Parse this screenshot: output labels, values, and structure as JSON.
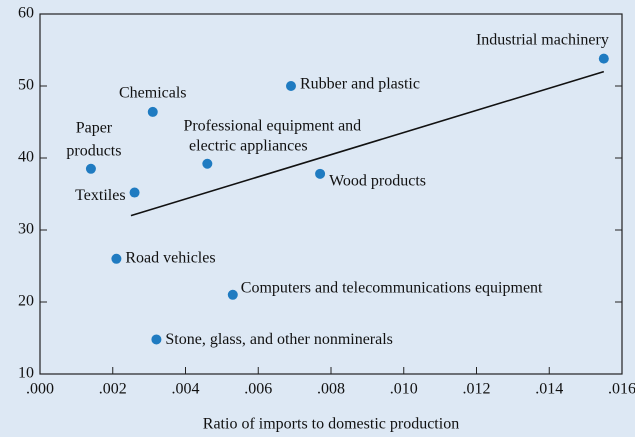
{
  "chart_data": {
    "type": "scatter",
    "x_label": "Ratio of imports to domestic production",
    "labels": [
      [
        "Paper",
        "products"
      ],
      [
        "Textiles"
      ],
      [
        "Road vehicles"
      ],
      [
        "Chemicals"
      ],
      [
        "Stone, glass, and other nonminerals"
      ],
      [
        "Professional equipment and",
        "electric appliances"
      ],
      [
        "Computers and telecommunications equipment"
      ],
      [
        "Rubber and plastic"
      ],
      [
        "Wood products"
      ],
      [
        "Industrial machinery"
      ]
    ],
    "x": [
      0.0014,
      0.0026,
      0.0021,
      0.0031,
      0.0032,
      0.0046,
      0.0053,
      0.0069,
      0.0077,
      0.0155
    ],
    "values": [
      38.5,
      35.2,
      26,
      46.4,
      14.8,
      39.2,
      21,
      50,
      37.8,
      53.8
    ],
    "color": "#1f7bc1",
    "trend": {
      "x": [
        0.0025,
        0.0155
      ],
      "values": [
        32,
        52
      ]
    },
    "xlim": [
      0,
      0.016
    ],
    "xticks": [
      {
        "value": 0,
        "label": ".000"
      },
      {
        "value": 0.002,
        "label": ".002"
      },
      {
        "value": 0.004,
        "label": ".004"
      },
      {
        "value": 0.006,
        "label": ".006"
      },
      {
        "value": 0.008,
        "label": ".008"
      },
      {
        "value": 0.01,
        "label": ".010"
      },
      {
        "value": 0.012,
        "label": ".012"
      },
      {
        "value": 0.014,
        "label": ".014"
      },
      {
        "value": 0.016,
        "label": ".016"
      }
    ],
    "ylim": [
      10,
      60
    ],
    "yticks": [
      10,
      20,
      30,
      40,
      50,
      60
    ]
  }
}
